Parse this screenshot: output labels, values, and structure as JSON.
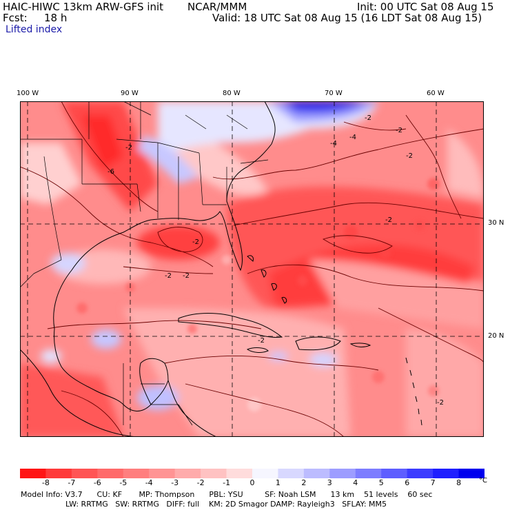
{
  "header": {
    "model": "HAIC-HIWC 13km ARW-GFS init",
    "org": "NCAR/MMM",
    "init": "Init: 00 UTC Sat 08 Aug 15",
    "fcst_label": "Fcst:",
    "fcst_value": "18 h",
    "valid": "Valid: 18 UTC Sat 08 Aug 15 (16 LDT Sat 08 Aug 15)",
    "field": "Lifted index"
  },
  "map": {
    "lon_labels": [
      "100 W",
      "90 W",
      "80 W",
      "70 W",
      "60 W"
    ],
    "lat_labels": [
      "30 N",
      "20 N"
    ],
    "contour_labels": [
      "-2",
      "-2",
      "-2",
      "-2",
      "-2",
      "-2",
      "-2",
      "-4",
      "-4",
      "-6",
      "-2",
      "-2",
      "-2"
    ]
  },
  "colorbar": {
    "ticks": [
      "-8",
      "-7",
      "-6",
      "-5",
      "-4",
      "-3",
      "-2",
      "-1",
      "0",
      "1",
      "2",
      "3",
      "4",
      "5",
      "6",
      "7",
      "8"
    ],
    "unit": "°C",
    "colors": [
      "#ff1515",
      "#ff3a3a",
      "#ff5454",
      "#ff6a6a",
      "#ff7e7e",
      "#ff9494",
      "#ffabab",
      "#ffc2c2",
      "#ffdcdc",
      "#f6f6ff",
      "#d8d8ff",
      "#bcbcff",
      "#9d9dff",
      "#7d7dff",
      "#5e5eff",
      "#3c3cff",
      "#1f1fff",
      "#0000ee"
    ]
  },
  "footer": {
    "line1": "Model Info: V3.7      CU: KF       MP: Thompson      PBL: YSU         SF: Noah LSM      13 km    51 levels    60 sec",
    "line2": "LW: RRTMG   SW: RRTMG   DIFF: full    KM: 2D Smagor DAMP: Rayleigh3   SFLAY: MM5"
  }
}
